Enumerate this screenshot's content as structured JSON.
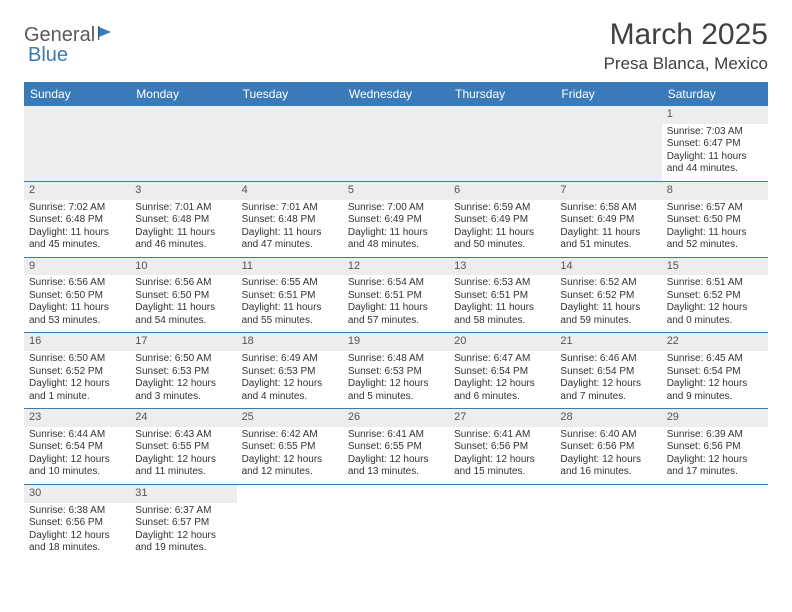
{
  "logo": {
    "part1": "General",
    "part2": "Blue"
  },
  "title": "March 2025",
  "location": "Presa Blanca, Mexico",
  "colors": {
    "header_bg": "#3a7ab8",
    "header_text": "#ffffff",
    "daynum_bg": "#eceeee",
    "border": "#3a7ab8",
    "title_color": "#404040",
    "body_text": "#333333"
  },
  "weekdays": [
    "Sunday",
    "Monday",
    "Tuesday",
    "Wednesday",
    "Thursday",
    "Friday",
    "Saturday"
  ],
  "first_weekday_index": 6,
  "days": [
    {
      "n": 1,
      "sr": "7:03 AM",
      "ss": "6:47 PM",
      "dl": "11 hours and 44 minutes."
    },
    {
      "n": 2,
      "sr": "7:02 AM",
      "ss": "6:48 PM",
      "dl": "11 hours and 45 minutes."
    },
    {
      "n": 3,
      "sr": "7:01 AM",
      "ss": "6:48 PM",
      "dl": "11 hours and 46 minutes."
    },
    {
      "n": 4,
      "sr": "7:01 AM",
      "ss": "6:48 PM",
      "dl": "11 hours and 47 minutes."
    },
    {
      "n": 5,
      "sr": "7:00 AM",
      "ss": "6:49 PM",
      "dl": "11 hours and 48 minutes."
    },
    {
      "n": 6,
      "sr": "6:59 AM",
      "ss": "6:49 PM",
      "dl": "11 hours and 50 minutes."
    },
    {
      "n": 7,
      "sr": "6:58 AM",
      "ss": "6:49 PM",
      "dl": "11 hours and 51 minutes."
    },
    {
      "n": 8,
      "sr": "6:57 AM",
      "ss": "6:50 PM",
      "dl": "11 hours and 52 minutes."
    },
    {
      "n": 9,
      "sr": "6:56 AM",
      "ss": "6:50 PM",
      "dl": "11 hours and 53 minutes."
    },
    {
      "n": 10,
      "sr": "6:56 AM",
      "ss": "6:50 PM",
      "dl": "11 hours and 54 minutes."
    },
    {
      "n": 11,
      "sr": "6:55 AM",
      "ss": "6:51 PM",
      "dl": "11 hours and 55 minutes."
    },
    {
      "n": 12,
      "sr": "6:54 AM",
      "ss": "6:51 PM",
      "dl": "11 hours and 57 minutes."
    },
    {
      "n": 13,
      "sr": "6:53 AM",
      "ss": "6:51 PM",
      "dl": "11 hours and 58 minutes."
    },
    {
      "n": 14,
      "sr": "6:52 AM",
      "ss": "6:52 PM",
      "dl": "11 hours and 59 minutes."
    },
    {
      "n": 15,
      "sr": "6:51 AM",
      "ss": "6:52 PM",
      "dl": "12 hours and 0 minutes."
    },
    {
      "n": 16,
      "sr": "6:50 AM",
      "ss": "6:52 PM",
      "dl": "12 hours and 1 minute."
    },
    {
      "n": 17,
      "sr": "6:50 AM",
      "ss": "6:53 PM",
      "dl": "12 hours and 3 minutes."
    },
    {
      "n": 18,
      "sr": "6:49 AM",
      "ss": "6:53 PM",
      "dl": "12 hours and 4 minutes."
    },
    {
      "n": 19,
      "sr": "6:48 AM",
      "ss": "6:53 PM",
      "dl": "12 hours and 5 minutes."
    },
    {
      "n": 20,
      "sr": "6:47 AM",
      "ss": "6:54 PM",
      "dl": "12 hours and 6 minutes."
    },
    {
      "n": 21,
      "sr": "6:46 AM",
      "ss": "6:54 PM",
      "dl": "12 hours and 7 minutes."
    },
    {
      "n": 22,
      "sr": "6:45 AM",
      "ss": "6:54 PM",
      "dl": "12 hours and 9 minutes."
    },
    {
      "n": 23,
      "sr": "6:44 AM",
      "ss": "6:54 PM",
      "dl": "12 hours and 10 minutes."
    },
    {
      "n": 24,
      "sr": "6:43 AM",
      "ss": "6:55 PM",
      "dl": "12 hours and 11 minutes."
    },
    {
      "n": 25,
      "sr": "6:42 AM",
      "ss": "6:55 PM",
      "dl": "12 hours and 12 minutes."
    },
    {
      "n": 26,
      "sr": "6:41 AM",
      "ss": "6:55 PM",
      "dl": "12 hours and 13 minutes."
    },
    {
      "n": 27,
      "sr": "6:41 AM",
      "ss": "6:56 PM",
      "dl": "12 hours and 15 minutes."
    },
    {
      "n": 28,
      "sr": "6:40 AM",
      "ss": "6:56 PM",
      "dl": "12 hours and 16 minutes."
    },
    {
      "n": 29,
      "sr": "6:39 AM",
      "ss": "6:56 PM",
      "dl": "12 hours and 17 minutes."
    },
    {
      "n": 30,
      "sr": "6:38 AM",
      "ss": "6:56 PM",
      "dl": "12 hours and 18 minutes."
    },
    {
      "n": 31,
      "sr": "6:37 AM",
      "ss": "6:57 PM",
      "dl": "12 hours and 19 minutes."
    }
  ],
  "labels": {
    "sunrise": "Sunrise:",
    "sunset": "Sunset:",
    "daylight": "Daylight:"
  }
}
